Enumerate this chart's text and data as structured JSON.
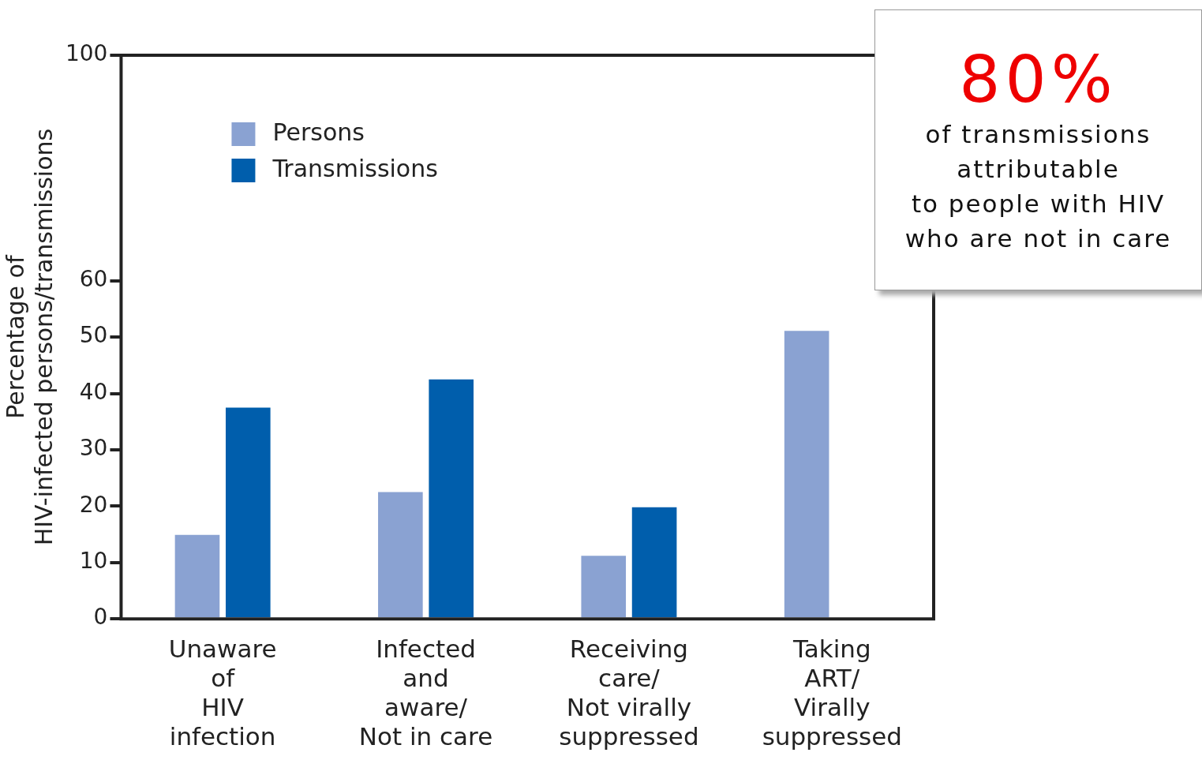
{
  "chart_data": {
    "type": "bar",
    "ylabel": "Percentage of\nHIV-infected persons/transmissions",
    "categories": [
      "Unaware\nof\nHIV\ninfection",
      "Infected\nand\naware/\nNot in care",
      "Receiving\ncare/\nNot virally\nsuppressed",
      "Taking\nART/\nVirally\nsuppressed"
    ],
    "series": [
      {
        "name": "Persons",
        "color": "#8aa2d2",
        "values": [
          14.9,
          22.5,
          11.2,
          51.1
        ]
      },
      {
        "name": "Transmissions",
        "color": "#005eac",
        "values": [
          37.5,
          42.5,
          19.8,
          null
        ]
      }
    ],
    "ylim": [
      0,
      100
    ],
    "yticks": [
      0,
      10,
      20,
      30,
      40,
      50,
      60,
      100
    ],
    "grid": false,
    "legend": "top left",
    "annotations": [
      "80%",
      "of transmissions\nattributable\nto people with HIV\nwho are not in care"
    ]
  }
}
